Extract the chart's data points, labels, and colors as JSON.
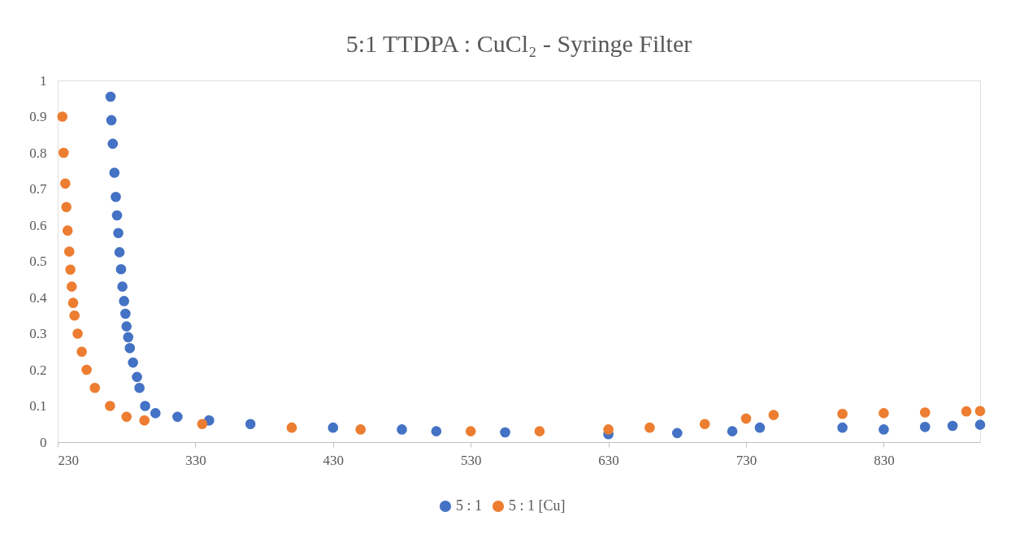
{
  "chart_data": {
    "type": "scatter",
    "title": "5:1 TTDPA : CuCl₂ - Syringe Filter",
    "xlim": [
      230,
      900
    ],
    "xticks": [
      230,
      330,
      430,
      530,
      630,
      730,
      830
    ],
    "ylim": [
      0,
      1
    ],
    "yticks": [
      {
        "value": 0,
        "label": "0"
      },
      0.1,
      0.2,
      0.3,
      0.4,
      0.5,
      0.6,
      0.7,
      0.8,
      0.9,
      {
        "value": 1,
        "label": "1"
      }
    ],
    "grid": false,
    "legend": "bottom",
    "marker": "circle",
    "series": [
      {
        "name": "5 : 1",
        "color": "#4472c4",
        "x": [
          268.4,
          269,
          270,
          271.2,
          272.2,
          273.1,
          274,
          274.9,
          276,
          277,
          278.2,
          279.2,
          280,
          281.2,
          282.4,
          284.7,
          287.6,
          289.4,
          293.5,
          301,
          317,
          340,
          370,
          430,
          480,
          505,
          555,
          630,
          680,
          720,
          740,
          800,
          830,
          860,
          880,
          900
        ],
        "values": [
          0.955,
          0.89,
          0.825,
          0.745,
          0.678,
          0.627,
          0.578,
          0.525,
          0.478,
          0.43,
          0.39,
          0.355,
          0.32,
          0.29,
          0.26,
          0.22,
          0.18,
          0.15,
          0.1,
          0.08,
          0.07,
          0.06,
          0.05,
          0.04,
          0.035,
          0.03,
          0.027,
          0.022,
          0.025,
          0.03,
          0.04,
          0.04,
          0.035,
          0.042,
          0.045,
          0.048
        ]
      },
      {
        "name": "5 : 1 [Cu]",
        "color": "#ed7d31",
        "x": [
          233.4,
          234.3,
          235.5,
          236.3,
          237.2,
          238.4,
          239.2,
          240.2,
          241.2,
          242.2,
          244.5,
          247.5,
          251,
          257,
          268,
          280,
          293,
          335,
          400,
          450,
          530,
          580,
          630,
          660,
          700,
          730,
          750,
          800,
          830,
          860,
          890,
          900
        ],
        "values": [
          0.9,
          0.8,
          0.715,
          0.65,
          0.585,
          0.527,
          0.477,
          0.43,
          0.385,
          0.35,
          0.3,
          0.25,
          0.2,
          0.15,
          0.1,
          0.07,
          0.06,
          0.05,
          0.04,
          0.035,
          0.03,
          0.03,
          0.035,
          0.04,
          0.05,
          0.065,
          0.075,
          0.078,
          0.08,
          0.082,
          0.085,
          0.086
        ]
      }
    ]
  }
}
